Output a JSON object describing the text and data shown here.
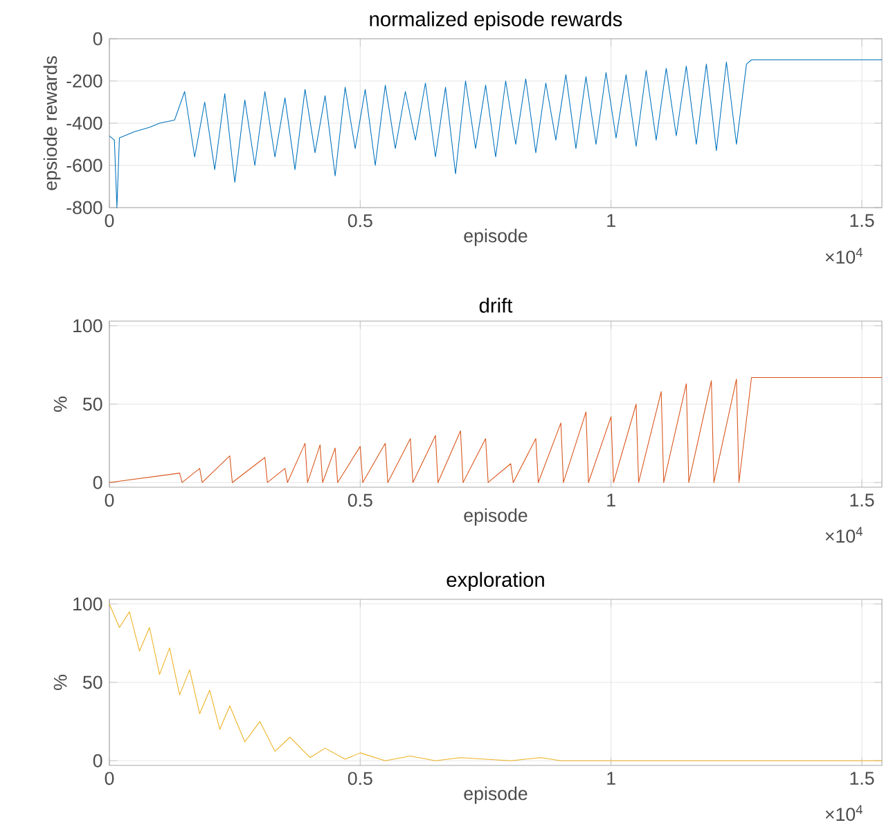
{
  "chart_data": [
    {
      "type": "line",
      "title": "normalized episode rewards",
      "xlabel": "episode",
      "ylabel": "epsiode rewards",
      "annotations": [
        "×10$^{4}$"
      ],
      "xlim": [
        0,
        1.54
      ],
      "xticks": [
        0,
        0.5,
        1,
        1.5
      ],
      "ylim": [
        -800,
        0
      ],
      "yticks": [
        -800,
        -600,
        -400,
        -200,
        0
      ],
      "grid": true,
      "series": [
        {
          "color": "#0072bd",
          "x": [
            0,
            0.01,
            0.015,
            0.02,
            0.05,
            0.08,
            0.1,
            0.13,
            0.15,
            0.17,
            0.19,
            0.21,
            0.23,
            0.25,
            0.27,
            0.29,
            0.31,
            0.33,
            0.35,
            0.37,
            0.39,
            0.41,
            0.43,
            0.45,
            0.47,
            0.49,
            0.51,
            0.53,
            0.55,
            0.57,
            0.59,
            0.61,
            0.63,
            0.65,
            0.67,
            0.69,
            0.71,
            0.73,
            0.75,
            0.77,
            0.79,
            0.81,
            0.83,
            0.85,
            0.87,
            0.89,
            0.91,
            0.93,
            0.95,
            0.97,
            0.99,
            1.01,
            1.03,
            1.05,
            1.07,
            1.09,
            1.11,
            1.13,
            1.15,
            1.17,
            1.19,
            1.21,
            1.23,
            1.25,
            1.27,
            1.28,
            1.54
          ],
          "values": [
            -460,
            -480,
            -800,
            -470,
            -440,
            -420,
            -400,
            -385,
            -250,
            -560,
            -300,
            -620,
            -260,
            -680,
            -290,
            -600,
            -250,
            -560,
            -280,
            -620,
            -240,
            -540,
            -270,
            -650,
            -230,
            -520,
            -240,
            -600,
            -220,
            -520,
            -250,
            -480,
            -210,
            -560,
            -230,
            -640,
            -200,
            -520,
            -220,
            -560,
            -200,
            -500,
            -190,
            -540,
            -210,
            -480,
            -170,
            -520,
            -180,
            -500,
            -160,
            -470,
            -170,
            -510,
            -150,
            -480,
            -140,
            -460,
            -130,
            -500,
            -120,
            -530,
            -110,
            -500,
            -120,
            -100,
            -100
          ]
        }
      ]
    },
    {
      "type": "line",
      "title": "drift",
      "xlabel": "episode",
      "ylabel": "%",
      "annotations": [
        "×10$^{4}$"
      ],
      "xlim": [
        0,
        1.54
      ],
      "xticks": [
        0,
        0.5,
        1,
        1.5
      ],
      "ylim": [
        -3,
        103
      ],
      "yticks": [
        0,
        50,
        100
      ],
      "grid": true,
      "series": [
        {
          "color": "#d95319",
          "x": [
            0,
            0.14,
            0.145,
            0.18,
            0.185,
            0.24,
            0.245,
            0.31,
            0.315,
            0.35,
            0.355,
            0.39,
            0.395,
            0.42,
            0.425,
            0.45,
            0.455,
            0.5,
            0.505,
            0.55,
            0.555,
            0.6,
            0.605,
            0.65,
            0.655,
            0.7,
            0.705,
            0.75,
            0.755,
            0.8,
            0.805,
            0.85,
            0.855,
            0.9,
            0.905,
            0.95,
            0.955,
            1.0,
            1.005,
            1.05,
            1.055,
            1.1,
            1.105,
            1.15,
            1.155,
            1.2,
            1.205,
            1.25,
            1.255,
            1.28,
            1.54
          ],
          "values": [
            0,
            6,
            0,
            9,
            0,
            17,
            0,
            16,
            0,
            9,
            0,
            25,
            0,
            24,
            0,
            22,
            0,
            23,
            0,
            25,
            0,
            28,
            0,
            30,
            0,
            33,
            0,
            28,
            0,
            12,
            0,
            28,
            0,
            38,
            0,
            45,
            0,
            42,
            0,
            50,
            0,
            58,
            0,
            63,
            0,
            65,
            0,
            66,
            0,
            67,
            67
          ]
        }
      ]
    },
    {
      "type": "line",
      "title": "exploration",
      "xlabel": "episode",
      "ylabel": "%",
      "annotations": [
        "×10$^{4}$"
      ],
      "xlim": [
        0,
        1.54
      ],
      "xticks": [
        0,
        0.5,
        1,
        1.5
      ],
      "ylim": [
        -3,
        103
      ],
      "yticks": [
        0,
        50,
        100
      ],
      "grid": true,
      "series": [
        {
          "color": "#edb120",
          "x": [
            0,
            0.02,
            0.04,
            0.06,
            0.08,
            0.1,
            0.12,
            0.14,
            0.16,
            0.18,
            0.2,
            0.22,
            0.24,
            0.27,
            0.3,
            0.33,
            0.36,
            0.4,
            0.43,
            0.47,
            0.5,
            0.55,
            0.6,
            0.65,
            0.7,
            0.8,
            0.86,
            0.9,
            1.54
          ],
          "values": [
            100,
            85,
            95,
            70,
            85,
            55,
            72,
            42,
            58,
            30,
            45,
            20,
            35,
            12,
            25,
            6,
            15,
            2,
            8,
            1,
            5,
            0,
            3,
            0,
            2,
            0,
            2,
            0,
            0
          ]
        }
      ]
    }
  ]
}
